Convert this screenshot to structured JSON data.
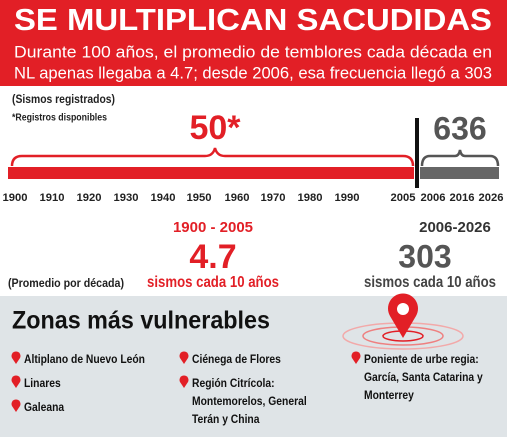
{
  "header": {
    "title": "SE MULTIPLICAN SACUDIDAS",
    "subtitle_lines": [
      "Durante 100 años, el promedio de temblores cada década en",
      "NL apenas llegaba a 4.7; desde 2006, esa frecuencia llegó a 303"
    ]
  },
  "timeline": {
    "note": "(Sismos registrados)",
    "footnote": "*Registros disponibles",
    "ticks": [
      1900,
      1910,
      1920,
      1930,
      1940,
      1950,
      1960,
      1970,
      1980,
      1990,
      2005,
      2006,
      2016,
      2026
    ],
    "period1": {
      "total": "50*",
      "range": "1900 - 2005",
      "average": 4.7,
      "unit": "sismos cada 10 años"
    },
    "period2": {
      "total": 636,
      "range": "2006-2026",
      "average": 303,
      "unit": "sismos cada 10 años"
    },
    "average_label": "(Promedio por década)"
  },
  "zones": {
    "title": "Zonas más vulnerables",
    "columns": [
      [
        [
          "Altiplano de Nuevo León"
        ],
        [
          "Linares"
        ],
        [
          "Galeana"
        ]
      ],
      [
        [
          "Ciénega de Flores"
        ],
        [
          "Región Citrícola:",
          "Montemorelos, General",
          "Terán y China"
        ]
      ],
      [
        [
          "Poniente de urbe regia:",
          "García, Santa Catarina y",
          "Monterrey"
        ]
      ]
    ]
  }
}
